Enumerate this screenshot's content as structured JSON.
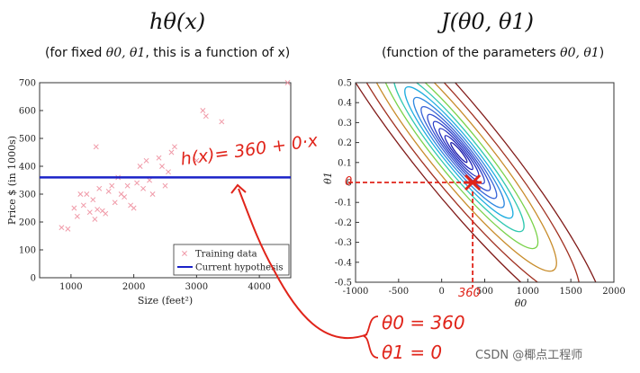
{
  "left_panel": {
    "title": "hθ(x)",
    "subtitle_prefix": "(for fixed ",
    "subtitle_math": "θ0, θ1",
    "subtitle_suffix": ", this is a function of x)"
  },
  "right_panel": {
    "title": "J(θ0, θ1)",
    "subtitle_prefix": "(function of the parameters ",
    "subtitle_math": "θ0, θ1",
    "subtitle_suffix": ")"
  },
  "annotations": {
    "hypothesis_equation": "h(x)= 360 + 0·x",
    "theta0_eq": "θ0 = 360",
    "theta1_eq": "θ1 = 0",
    "theta0_axis_mark": "360",
    "theta1_axis_mark": "0"
  },
  "watermark": "CSDN @椰点工程师",
  "colors": {
    "accent_red": "#e0241a",
    "hypothesis_blue": "#1a22c8",
    "training_pink": "#f09aa8"
  },
  "chart_data": [
    {
      "type": "scatter",
      "title": "",
      "xlabel": "Size (feet²)",
      "ylabel": "Price $ (in 1000s)",
      "xlim": [
        500,
        4500
      ],
      "ylim": [
        0,
        700
      ],
      "xticks": [
        "1000",
        "2000",
        "3000",
        "4000"
      ],
      "yticks": [
        "0",
        "100",
        "200",
        "300",
        "400",
        "500",
        "600",
        "700"
      ],
      "series": [
        {
          "name": "Training data",
          "marker": "x",
          "points": [
            [
              850,
              180
            ],
            [
              950,
              175
            ],
            [
              1050,
              250
            ],
            [
              1100,
              220
            ],
            [
              1150,
              300
            ],
            [
              1200,
              260
            ],
            [
              1250,
              300
            ],
            [
              1300,
              235
            ],
            [
              1350,
              280
            ],
            [
              1380,
              210
            ],
            [
              1400,
              470
            ],
            [
              1420,
              245
            ],
            [
              1450,
              320
            ],
            [
              1500,
              240
            ],
            [
              1550,
              230
            ],
            [
              1600,
              310
            ],
            [
              1650,
              330
            ],
            [
              1700,
              270
            ],
            [
              1750,
              360
            ],
            [
              1800,
              300
            ],
            [
              1850,
              290
            ],
            [
              1900,
              330
            ],
            [
              1950,
              260
            ],
            [
              2000,
              250
            ],
            [
              2050,
              340
            ],
            [
              2100,
              400
            ],
            [
              2150,
              320
            ],
            [
              2200,
              420
            ],
            [
              2250,
              350
            ],
            [
              2300,
              300
            ],
            [
              2400,
              430
            ],
            [
              2450,
              400
            ],
            [
              2500,
              330
            ],
            [
              2550,
              380
            ],
            [
              2600,
              450
            ],
            [
              2650,
              470
            ],
            [
              3000,
              420
            ],
            [
              3100,
              600
            ],
            [
              3150,
              580
            ],
            [
              3400,
              560
            ],
            [
              4450,
              700
            ]
          ]
        },
        {
          "name": "Current hypothesis",
          "marker": "line",
          "points": [
            [
              500,
              360
            ],
            [
              4500,
              360
            ]
          ]
        }
      ],
      "legend": "bottom-right"
    },
    {
      "type": "contour",
      "title": "",
      "xlabel": "θ0",
      "ylabel": "θ1",
      "xlim": [
        -1000,
        2000
      ],
      "ylim": [
        -0.5,
        0.5
      ],
      "xticks": [
        "-1000",
        "-500",
        "0",
        "500",
        "1000",
        "1500",
        "2000"
      ],
      "yticks": [
        "-0.5",
        "-0.4",
        "-0.3",
        "-0.2",
        "-0.1",
        "0",
        "0.1",
        "0.2",
        "0.3",
        "0.4",
        "0.5"
      ],
      "minimum": [
        200,
        0.15
      ],
      "marked_point": [
        360,
        0
      ],
      "levels": [
        {
          "a": 140,
          "color": "#1a1aa8"
        },
        {
          "a": 240,
          "color": "#1e22b8"
        },
        {
          "a": 340,
          "color": "#2230c0"
        },
        {
          "a": 440,
          "color": "#2a3ec8"
        },
        {
          "a": 540,
          "color": "#3550d0"
        },
        {
          "a": 650,
          "color": "#3a66d8"
        },
        {
          "a": 780,
          "color": "#2e88e0"
        },
        {
          "a": 930,
          "color": "#20aee0"
        },
        {
          "a": 1120,
          "color": "#30c8b0"
        },
        {
          "a": 1360,
          "color": "#7ad24a"
        },
        {
          "a": 1680,
          "color": "#c88c2a"
        },
        {
          "a": 2080,
          "color": "#a03020"
        },
        {
          "a": 2550,
          "color": "#801a18"
        }
      ]
    }
  ]
}
